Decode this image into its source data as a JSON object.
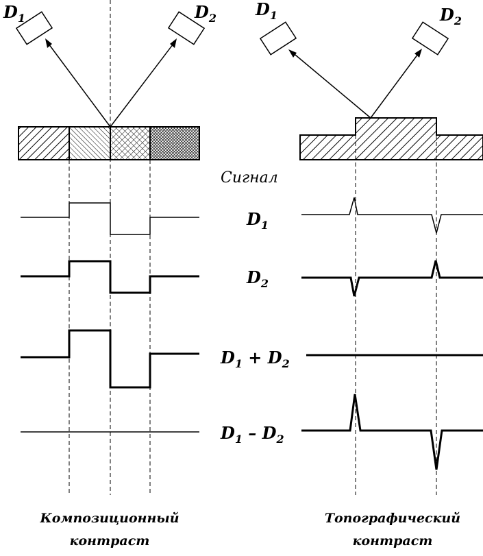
{
  "detectors": {
    "d1": "D",
    "d1_sub": "1",
    "d2": "D",
    "d2_sub": "2"
  },
  "signal_header": "Сигнал",
  "rows": [
    {
      "main": "D",
      "sub": "1",
      "rest": ""
    },
    {
      "main": "D",
      "sub": "2",
      "rest": ""
    },
    {
      "main": "D",
      "sub": "1",
      "op": " + ",
      "main2": "D",
      "sub2": "2"
    },
    {
      "main": "D",
      "sub": "1",
      "op": " – ",
      "main2": "D",
      "sub2": "2"
    }
  ],
  "captions": {
    "left_line1": "Композиционный",
    "left_line2": "контраст",
    "right_line1": "Топографический",
    "right_line2": "контраст"
  }
}
